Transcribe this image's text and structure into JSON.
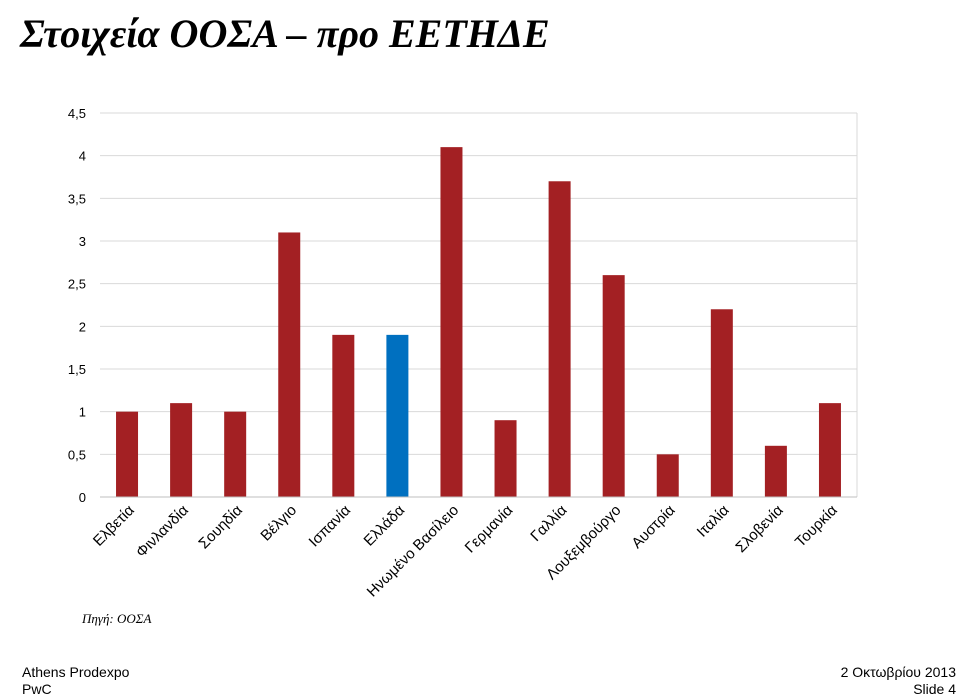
{
  "slide": {
    "title": "Στοιχεία ΟΟΣΑ – προ ΕΕΤΗΔΕ",
    "source": "Πηγή: ΟΟΣΑ",
    "footer_left_1": "Athens Prodexpo",
    "footer_left_2": "PwC",
    "footer_right_1": "2 Οκτωβρίου 2013",
    "footer_right_2": "Slide 4"
  },
  "colors": {
    "bar": "#A32023",
    "highlight": "#0070C0",
    "grid": "#D9D9D9"
  },
  "chart_data": {
    "type": "bar",
    "title": "",
    "xlabel": "",
    "ylabel": "",
    "ylim": [
      0,
      4.5
    ],
    "yticks": [
      "0",
      "0,5",
      "1",
      "1,5",
      "2",
      "2,5",
      "3",
      "3,5",
      "4",
      "4,5"
    ],
    "ytick_values": [
      0,
      0.5,
      1,
      1.5,
      2,
      2.5,
      3,
      3.5,
      4,
      4.5
    ],
    "grid": true,
    "highlight_category": "Ελλάδα",
    "categories": [
      "Ελβετία",
      "Φινλανδία",
      "Σουηδία",
      "Βέλγιο",
      "Ισπανία",
      "Ελλάδα",
      "Ηνωμένο Βασίλειο",
      "Γερμανία",
      "Γαλλία",
      "Λουξεμβούργο",
      "Αυστρία",
      "Ιταλία",
      "Σλοβενία",
      "Τουρκία"
    ],
    "values": [
      1.0,
      1.1,
      1.0,
      3.1,
      1.9,
      1.9,
      4.1,
      0.9,
      3.7,
      2.6,
      0.5,
      2.2,
      0.6,
      1.1
    ]
  }
}
